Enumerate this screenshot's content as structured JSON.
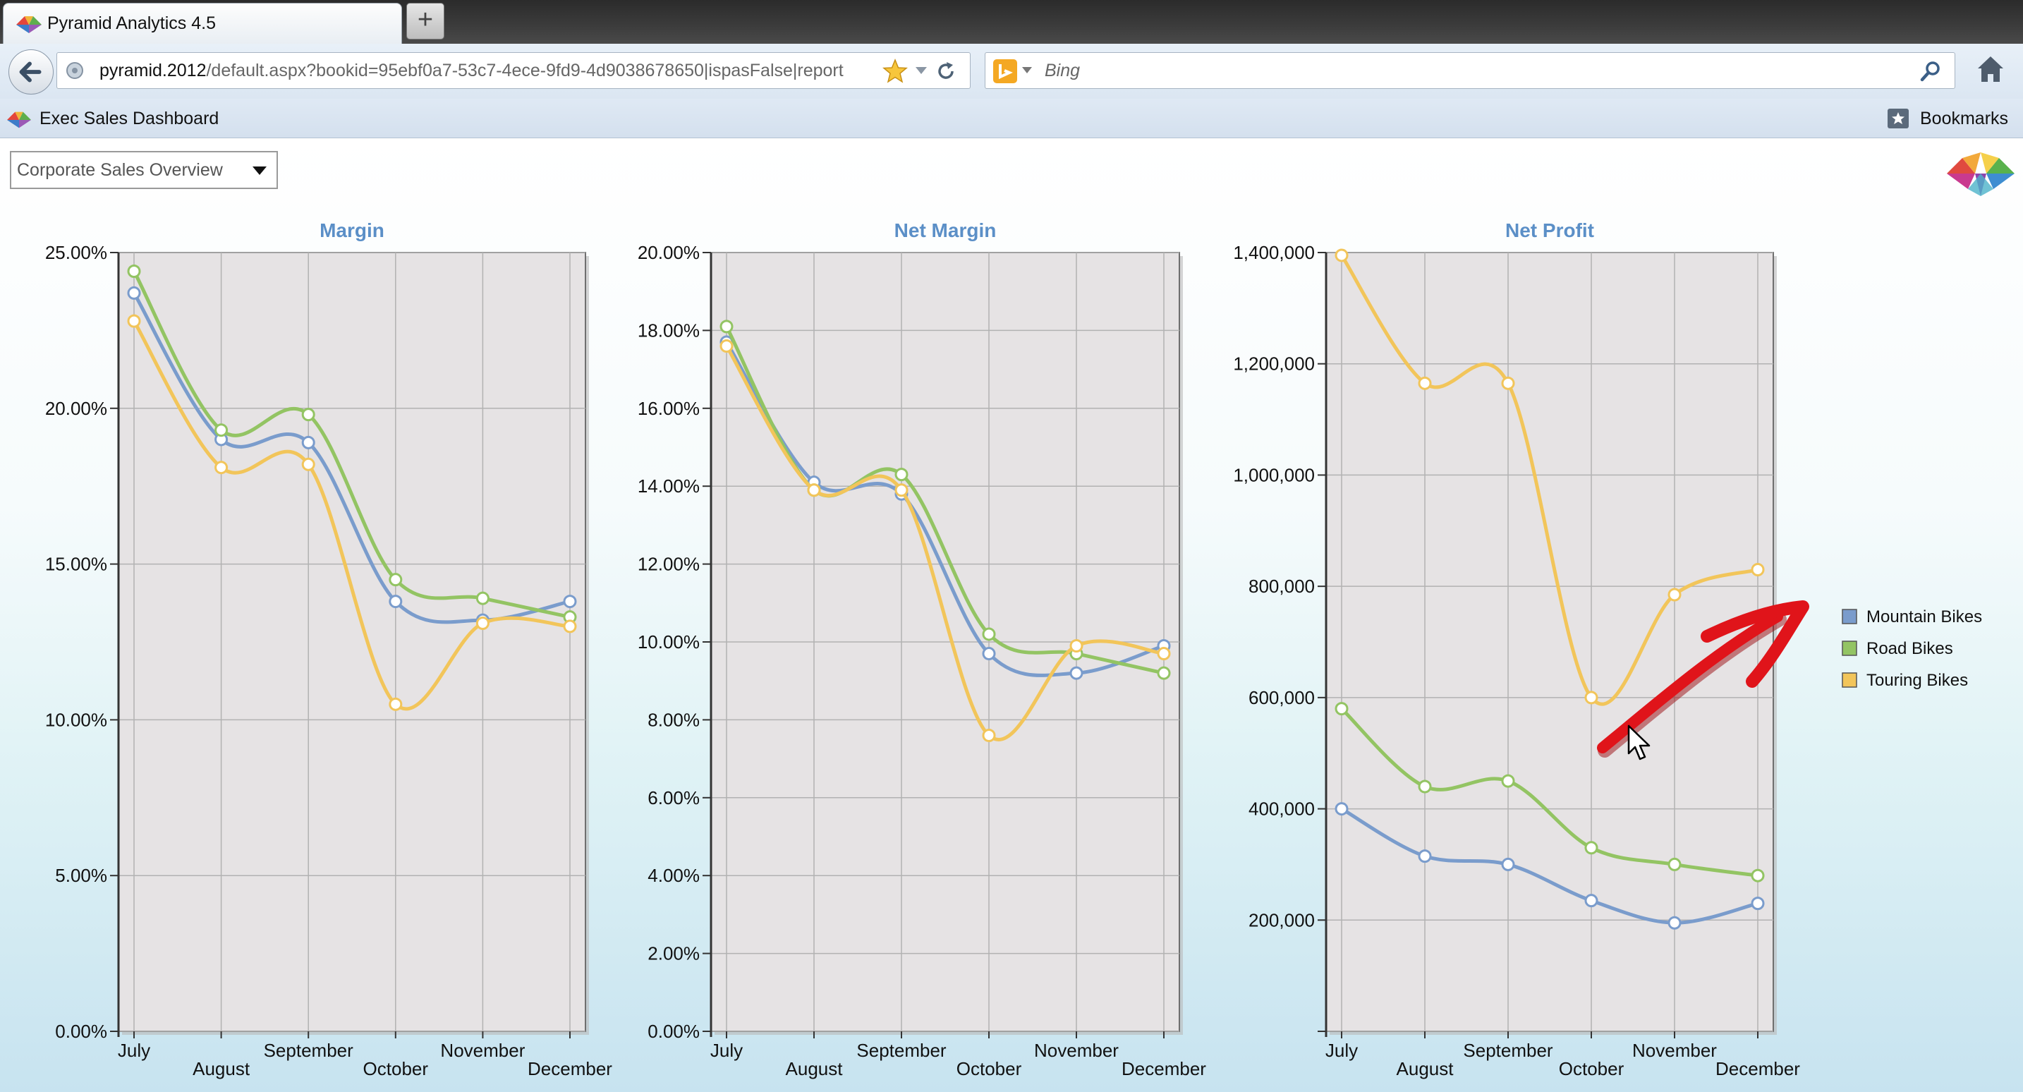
{
  "browser": {
    "tab_title": "Pyramid Analytics 4.5",
    "new_tab_label": "+",
    "url_domain": "pyramid.2012",
    "url_path": "/default.aspx?bookid=95ebf0a7-53c7-4ece-9fd9-4d9038678650|ispasFalse|report",
    "search_placeholder": "Bing",
    "bookmark_item": "Exec Sales Dashboard",
    "bookmarks_label": "Bookmarks",
    "icons": [
      "back-icon",
      "globe-icon",
      "star-icon",
      "dropdown-icon",
      "reload-icon",
      "bing-icon",
      "search-icon",
      "home-icon",
      "bookmarks-icon"
    ]
  },
  "report": {
    "selector_value": "Corporate Sales Overview"
  },
  "legend": [
    "Mountain Bikes",
    "Road Bikes",
    "Touring Bikes"
  ],
  "colors": {
    "mountain": "#7a9ccc",
    "road": "#93c463",
    "touring": "#f2c55a",
    "plot_bg": "#e6e3e4",
    "title": "#5b8fc7",
    "annotation_arrow": "#e0141a"
  },
  "chart_data": [
    {
      "type": "line",
      "title": "Margin",
      "categories": [
        "July",
        "August",
        "September",
        "October",
        "November",
        "December"
      ],
      "ylim": [
        0,
        25
      ],
      "yticks": [
        "0.00%",
        "5.00%",
        "10.00%",
        "15.00%",
        "20.00%",
        "25.00%"
      ],
      "series": [
        {
          "name": "Mountain Bikes",
          "values": [
            23.7,
            19.0,
            18.9,
            13.8,
            13.2,
            13.8
          ]
        },
        {
          "name": "Road Bikes",
          "values": [
            24.4,
            19.3,
            19.8,
            14.5,
            13.9,
            13.3
          ]
        },
        {
          "name": "Touring Bikes",
          "values": [
            22.8,
            18.1,
            18.2,
            10.5,
            13.1,
            13.0
          ]
        }
      ]
    },
    {
      "type": "line",
      "title": "Net Margin",
      "categories": [
        "July",
        "August",
        "September",
        "October",
        "November",
        "December"
      ],
      "ylim": [
        0,
        20
      ],
      "yticks": [
        "0.00%",
        "2.00%",
        "4.00%",
        "6.00%",
        "8.00%",
        "10.00%",
        "12.00%",
        "14.00%",
        "16.00%",
        "18.00%",
        "20.00%"
      ],
      "series": [
        {
          "name": "Mountain Bikes",
          "values": [
            17.7,
            14.1,
            13.8,
            9.7,
            9.2,
            9.9
          ]
        },
        {
          "name": "Road Bikes",
          "values": [
            18.1,
            13.9,
            14.3,
            10.2,
            9.7,
            9.2
          ]
        },
        {
          "name": "Touring Bikes",
          "values": [
            17.6,
            13.9,
            13.9,
            7.6,
            9.9,
            9.7
          ]
        }
      ]
    },
    {
      "type": "line",
      "title": "Net Profit",
      "categories": [
        "July",
        "August",
        "September",
        "October",
        "November",
        "December"
      ],
      "ylim": [
        0,
        1400000
      ],
      "yticks": [
        "",
        "200,000",
        "400,000",
        "600,000",
        "800,000",
        "1,000,000",
        "1,200,000",
        "1,400,000"
      ],
      "series": [
        {
          "name": "Mountain Bikes",
          "values": [
            400000,
            315000,
            300000,
            235000,
            195000,
            230000
          ]
        },
        {
          "name": "Road Bikes",
          "values": [
            580000,
            440000,
            450000,
            330000,
            300000,
            280000
          ]
        },
        {
          "name": "Touring Bikes",
          "values": [
            1395000,
            1165000,
            1165000,
            600000,
            785000,
            830000
          ]
        }
      ]
    }
  ]
}
